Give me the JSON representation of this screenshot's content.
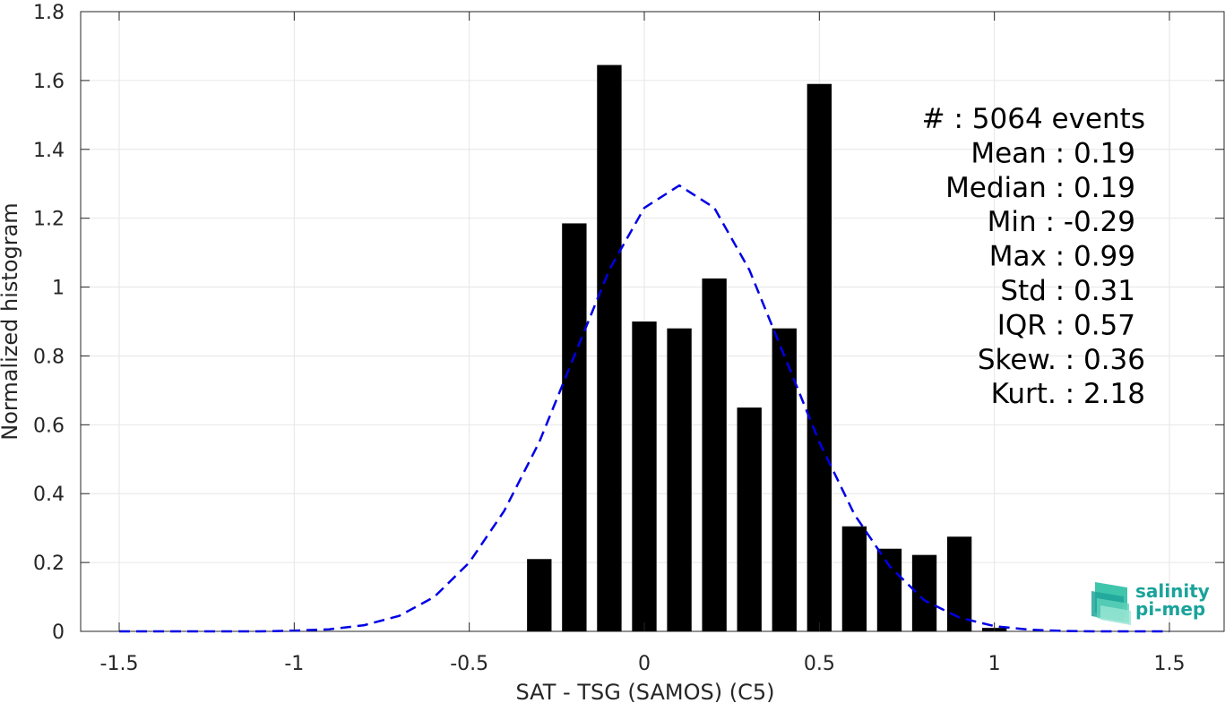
{
  "chart_data": {
    "type": "bar",
    "xlabel": "SAT - TSG (SAMOS) (C5)",
    "ylabel": "Normalized histogram",
    "xlim": [
      -1.5,
      1.5
    ],
    "ylim": [
      0,
      1.8
    ],
    "xticks": [
      "-1.5",
      "-1",
      "-0.5",
      "0",
      "0.5",
      "1",
      "1.5"
    ],
    "yticks": [
      "0",
      "0.2",
      "0.4",
      "0.6",
      "0.8",
      "1",
      "1.2",
      "1.4",
      "1.6",
      "1.8"
    ],
    "grid": true,
    "bars": {
      "x": [
        -0.3,
        -0.2,
        -0.1,
        0.0,
        0.1,
        0.2,
        0.3,
        0.4,
        0.5,
        0.6,
        0.7,
        0.8,
        0.9,
        1.0
      ],
      "values": [
        0.21,
        1.185,
        1.645,
        0.9,
        0.88,
        1.025,
        0.65,
        0.88,
        1.59,
        0.305,
        0.24,
        0.222,
        0.275,
        0.01
      ],
      "width": 0.07,
      "color": "#000000"
    },
    "fit_curve": {
      "style": "dashed",
      "color": "#0000e6",
      "x": [
        -1.5,
        -1.4,
        -1.3,
        -1.2,
        -1.1,
        -1.0,
        -0.9,
        -0.8,
        -0.7,
        -0.6,
        -0.5,
        -0.4,
        -0.3,
        -0.2,
        -0.1,
        0.0,
        0.1,
        0.2,
        0.3,
        0.4,
        0.5,
        0.6,
        0.7,
        0.8,
        0.9,
        1.0,
        1.1,
        1.2,
        1.3,
        1.4,
        1.5
      ],
      "y": [
        0.0,
        0.0,
        0.0,
        0.0,
        0.0,
        0.002,
        0.006,
        0.018,
        0.045,
        0.1,
        0.2,
        0.35,
        0.55,
        0.8,
        1.05,
        1.23,
        1.295,
        1.23,
        1.05,
        0.8,
        0.55,
        0.34,
        0.19,
        0.09,
        0.04,
        0.015,
        0.005,
        0.001,
        0.0,
        0.0,
        0.0
      ]
    },
    "annotations": [
      "#  : 5064 events",
      "Mean : 0.19",
      "Median : 0.19",
      "Min : -0.29",
      "Max : 0.99",
      "Std : 0.31",
      "IQR : 0.57",
      "Skew. : 0.36",
      "Kurt. : 2.18"
    ]
  },
  "logo": {
    "line1": "salinity",
    "line2": "pi-mep"
  }
}
